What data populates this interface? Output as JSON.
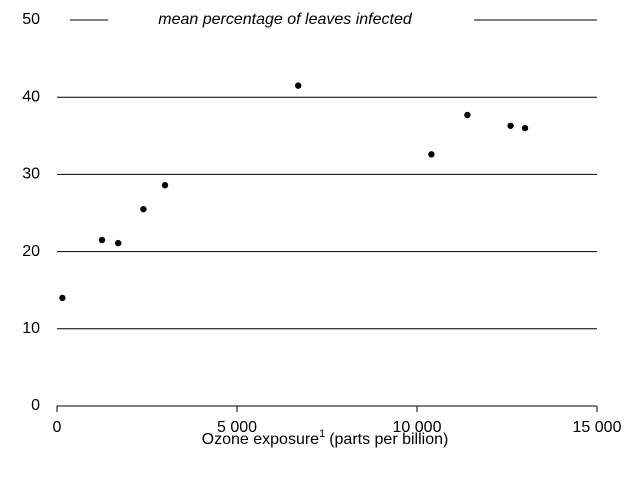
{
  "chart_data": {
    "type": "scatter",
    "ylabel": "mean percentage of leaves infected",
    "xlabel": "Ozone exposure",
    "xlabel_note": "1",
    "xlabel_unit": "(parts per billion)",
    "x": [
      150,
      1250,
      1700,
      2400,
      3000,
      6700,
      10400,
      11400,
      12600,
      13000
    ],
    "values": [
      14.0,
      21.5,
      21.1,
      25.5,
      28.6,
      41.5,
      32.6,
      37.7,
      36.3,
      36.0
    ],
    "color": "#000000",
    "xlim": [
      0,
      15000
    ],
    "xticks": [
      0,
      {
        "value": 5000,
        "label": "5 000"
      },
      {
        "value": 10000,
        "label": "10 000"
      },
      {
        "value": 15000,
        "label": "15 000"
      }
    ],
    "ylim": [
      0,
      50
    ],
    "yticks": [
      0,
      10,
      20,
      30,
      40,
      50
    ],
    "grid": true
  }
}
